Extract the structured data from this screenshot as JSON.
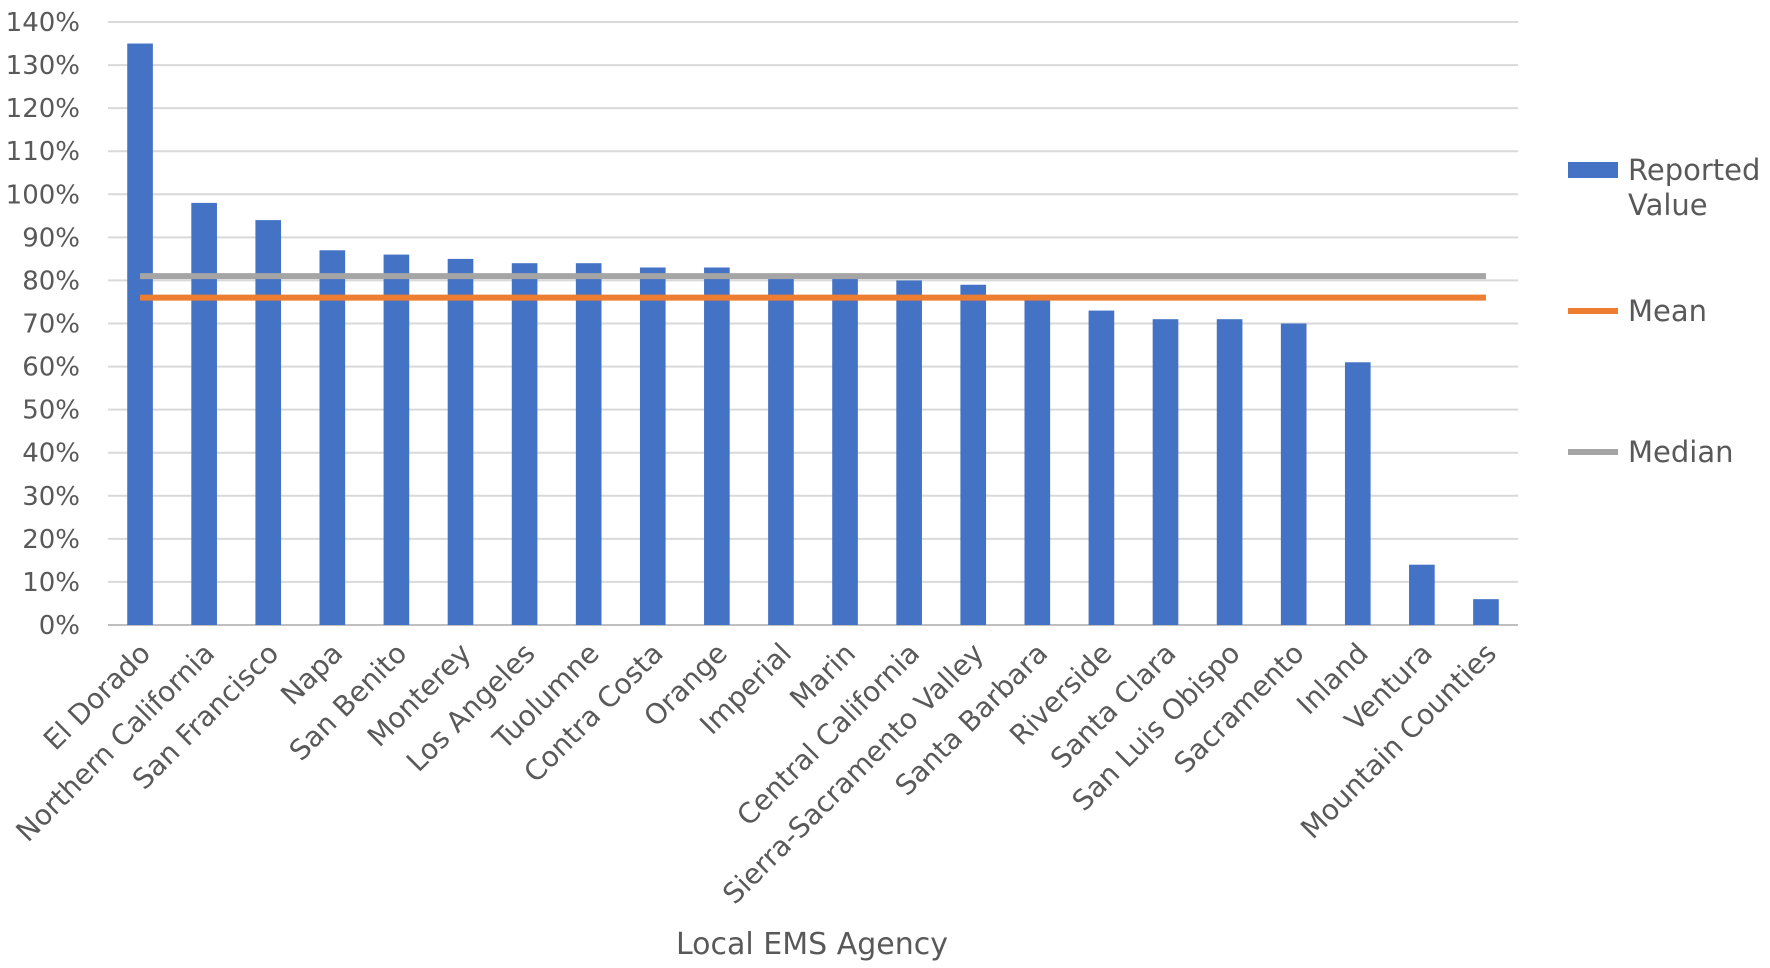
{
  "chart_data": {
    "type": "bar",
    "title": "",
    "xlabel": "Local EMS Agency",
    "ylabel": "",
    "ylim": [
      0,
      1.4
    ],
    "ytick_labels": [
      "0%",
      "10%",
      "20%",
      "30%",
      "40%",
      "50%",
      "60%",
      "70%",
      "80%",
      "90%",
      "100%",
      "110%",
      "120%",
      "130%",
      "140%"
    ],
    "grid": true,
    "legend_position": "right",
    "categories": [
      "El Dorado",
      "Northern California",
      "San Francisco",
      "Napa",
      "San Benito",
      "Monterey",
      "Los Angeles",
      "Tuolumne",
      "Contra Costa",
      "Orange",
      "Imperial",
      "Marin",
      "Central California",
      "Sierra-Sacramento Valley",
      "Santa Barbara",
      "Riverside",
      "Santa Clara",
      "San Luis Obispo",
      "Sacramento",
      "Inland",
      "Ventura",
      "Mountain Counties"
    ],
    "series": [
      {
        "name": "Reported Value",
        "kind": "bar",
        "color": "#4472C4",
        "values": [
          1.35,
          0.98,
          0.94,
          0.87,
          0.86,
          0.85,
          0.84,
          0.84,
          0.83,
          0.83,
          0.81,
          0.81,
          0.8,
          0.79,
          0.76,
          0.73,
          0.71,
          0.71,
          0.7,
          0.61,
          0.14,
          0.06
        ]
      },
      {
        "name": "Mean",
        "kind": "line",
        "color": "#ED7D31",
        "value": 0.76
      },
      {
        "name": "Median",
        "kind": "line",
        "color": "#A5A5A5",
        "value": 0.81
      }
    ]
  }
}
